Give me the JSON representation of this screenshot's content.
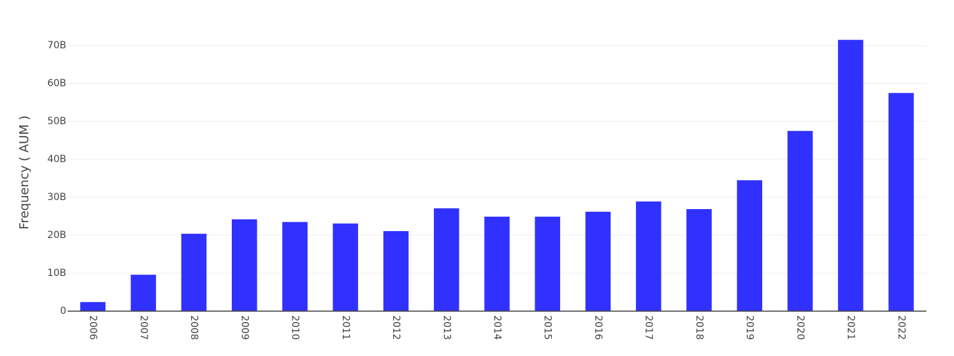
{
  "chart_data": {
    "type": "bar",
    "y_label": "Frequency ( AUM )",
    "categories": [
      "2006",
      "2007",
      "2008",
      "2009",
      "2010",
      "2011",
      "2012",
      "2013",
      "2014",
      "2015",
      "2016",
      "2017",
      "2018",
      "2019",
      "2020",
      "2021",
      "2022"
    ],
    "values": [
      2400000000,
      9600000000,
      20400000000,
      24200000000,
      23500000000,
      23100000000,
      21100000000,
      27100000000,
      24900000000,
      24900000000,
      26200000000,
      28900000000,
      26900000000,
      34500000000,
      47500000000,
      71500000000,
      57500000000
    ],
    "color": "#3131ff",
    "ylim": [
      0,
      75000000000
    ],
    "yticks": [
      0,
      {
        "value": 10000000000,
        "label": "10B"
      },
      {
        "value": 20000000000,
        "label": "20B"
      },
      {
        "value": 30000000000,
        "label": "30B"
      },
      {
        "value": 40000000000,
        "label": "40B"
      },
      {
        "value": 50000000000,
        "label": "50B"
      },
      {
        "value": 60000000000,
        "label": "60B"
      },
      {
        "value": 70000000000,
        "label": "70B"
      }
    ],
    "grid": true
  }
}
